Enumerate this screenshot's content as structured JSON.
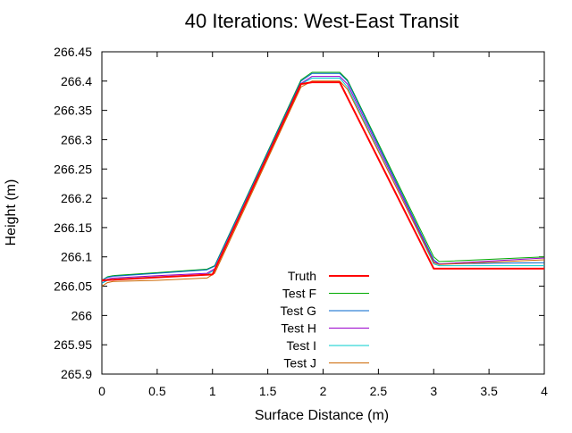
{
  "chart_data": {
    "type": "line",
    "title": "40 Iterations: West-East Transit",
    "xlabel": "Surface Distance (m)",
    "ylabel": "Height (m)",
    "xlim": [
      0,
      4
    ],
    "ylim": [
      265.9,
      266.45
    ],
    "xticks": [
      "0",
      "0.5",
      "1",
      "1.5",
      "2",
      "2.5",
      "3",
      "3.5",
      "4"
    ],
    "yticks": [
      "265.9",
      "265.95",
      "266",
      "266.05",
      "266.1",
      "266.15",
      "266.2",
      "266.25",
      "266.3",
      "266.35",
      "266.4",
      "266.45"
    ],
    "grid": false,
    "legend_position": "bottom-center",
    "series": [
      {
        "name": "Truth",
        "color": "#ff0000",
        "x": [
          0,
          1,
          1.8,
          1.9,
          2.15,
          3,
          4
        ],
        "y": [
          266.06,
          266.07,
          266.395,
          266.398,
          266.398,
          266.08,
          266.08
        ]
      },
      {
        "name": "Test F",
        "color": "#00aa00",
        "x": [
          0,
          0.05,
          0.1,
          0.5,
          0.95,
          1.02,
          1.8,
          1.9,
          2.15,
          2.22,
          3.0,
          3.05,
          4
        ],
        "y": [
          266.06,
          266.066,
          266.068,
          266.073,
          266.079,
          266.085,
          266.402,
          266.415,
          266.415,
          266.402,
          266.1,
          266.092,
          266.1
        ]
      },
      {
        "name": "Test G",
        "color": "#0066cc",
        "x": [
          0,
          0.05,
          0.1,
          0.5,
          0.95,
          1.02,
          1.8,
          1.9,
          2.15,
          2.22,
          3.0,
          3.05,
          4
        ],
        "y": [
          266.06,
          266.065,
          266.067,
          266.072,
          266.078,
          266.084,
          266.4,
          266.413,
          266.413,
          266.4,
          266.095,
          266.088,
          266.09
        ]
      },
      {
        "name": "Test H",
        "color": "#9900cc",
        "x": [
          0,
          0.05,
          0.1,
          0.5,
          0.95,
          1.02,
          1.8,
          1.9,
          2.15,
          2.22,
          3.0,
          3.05,
          4
        ],
        "y": [
          266.055,
          266.062,
          266.064,
          266.068,
          266.072,
          266.08,
          266.396,
          266.408,
          266.408,
          266.395,
          266.092,
          266.088,
          266.098
        ]
      },
      {
        "name": "Test I",
        "color": "#00cccc",
        "x": [
          0,
          0.05,
          0.1,
          0.5,
          0.95,
          1.02,
          1.8,
          1.9,
          2.15,
          2.22,
          3.0,
          3.05,
          4
        ],
        "y": [
          266.055,
          266.06,
          266.062,
          266.066,
          266.07,
          266.078,
          266.395,
          266.405,
          266.405,
          266.39,
          266.088,
          266.085,
          266.085
        ]
      },
      {
        "name": "Test J",
        "color": "#cc6600",
        "x": [
          0,
          0.05,
          0.1,
          0.5,
          0.95,
          1.02,
          1.8,
          1.9,
          2.15,
          2.22,
          3.0,
          3.05,
          4
        ],
        "y": [
          266.05,
          266.056,
          266.058,
          266.06,
          266.064,
          266.072,
          266.39,
          266.4,
          266.4,
          266.386,
          266.09,
          266.087,
          266.095
        ]
      }
    ]
  }
}
